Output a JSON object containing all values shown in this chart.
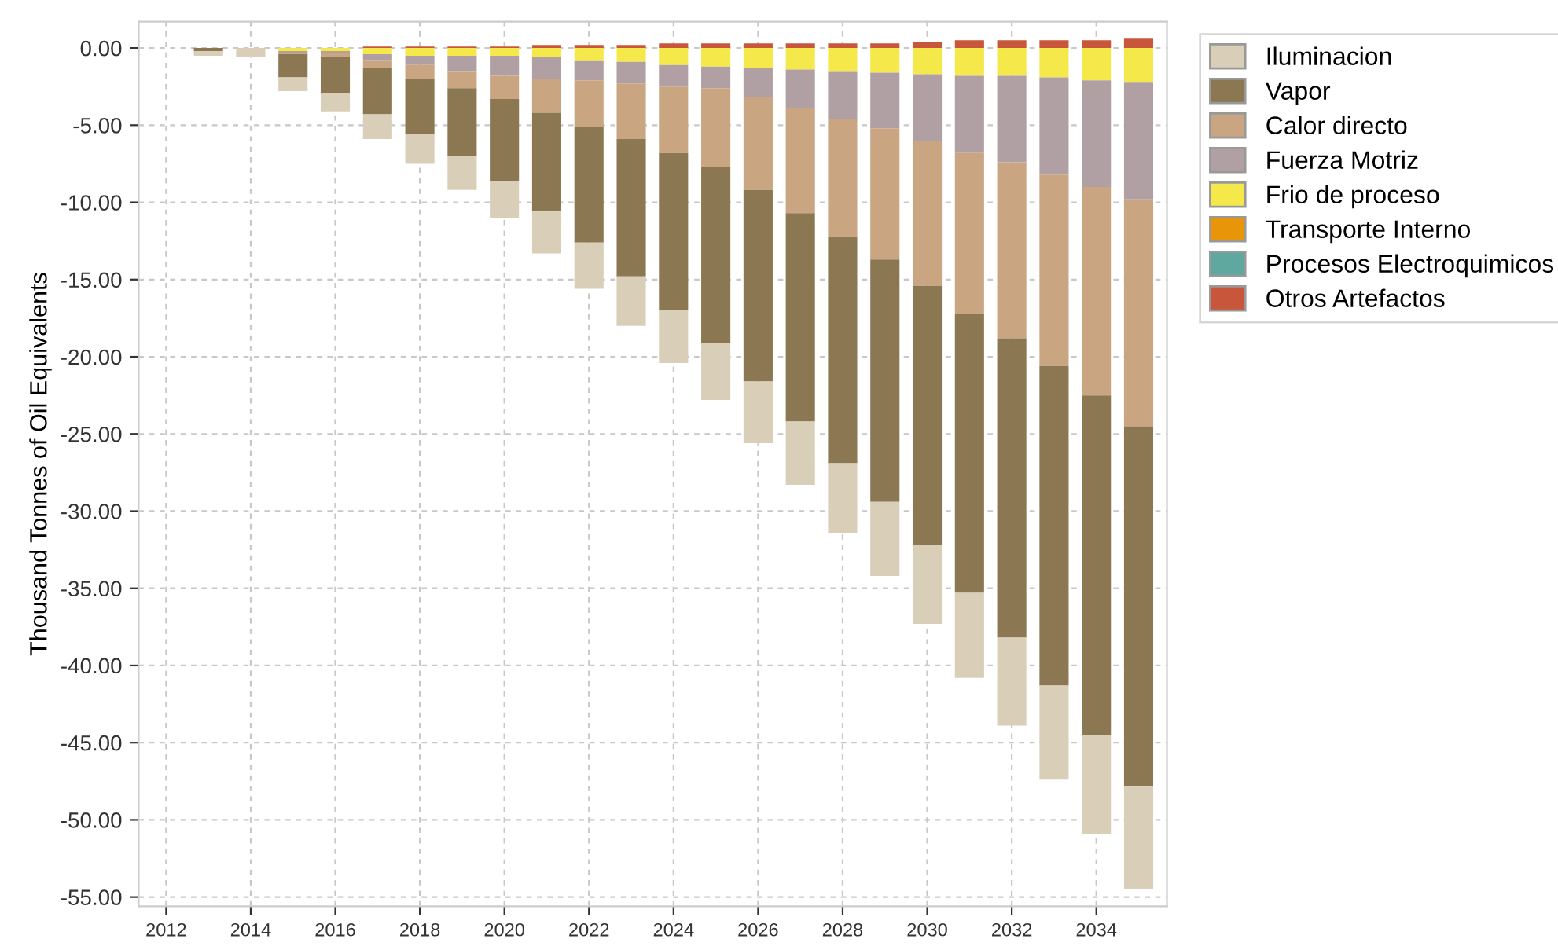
{
  "chart_data": {
    "type": "bar",
    "stacked": true,
    "ylabel": "Thousand Tonnes of Oil Equivalents",
    "x": [
      2013,
      2014,
      2015,
      2016,
      2017,
      2018,
      2019,
      2020,
      2021,
      2022,
      2023,
      2024,
      2025,
      2026,
      2027,
      2028,
      2029,
      2030,
      2031,
      2032,
      2033,
      2034,
      2035
    ],
    "series": [
      {
        "name": "Otros Artefactos",
        "color": "#c8563a",
        "values": [
          null,
          null,
          null,
          null,
          0.1,
          0.1,
          0.1,
          0.1,
          0.2,
          0.2,
          0.2,
          0.3,
          0.3,
          0.3,
          0.3,
          0.3,
          0.3,
          0.4,
          0.5,
          0.5,
          0.5,
          0.5,
          0.6
        ]
      },
      {
        "name": "Procesos Electroquimicos",
        "color": "#5fa8a0",
        "values": [
          null,
          null,
          null,
          null,
          null,
          null,
          null,
          null,
          null,
          null,
          null,
          null,
          null,
          null,
          null,
          null,
          null,
          null,
          null,
          null,
          null,
          null,
          null
        ]
      },
      {
        "name": "Transporte Interno",
        "color": "#e8950a",
        "values": [
          null,
          null,
          null,
          null,
          null,
          null,
          null,
          null,
          null,
          null,
          null,
          null,
          null,
          null,
          null,
          null,
          null,
          null,
          null,
          null,
          null,
          null,
          null
        ]
      },
      {
        "name": "Frio de proceso",
        "color": "#f5e84a",
        "values": [
          null,
          null,
          -0.2,
          -0.2,
          -0.4,
          -0.5,
          -0.5,
          -0.5,
          -0.6,
          -0.8,
          -0.9,
          -1.1,
          -1.2,
          -1.3,
          -1.4,
          -1.5,
          -1.6,
          -1.7,
          -1.8,
          -1.8,
          -1.9,
          -2.1,
          -2.2
        ]
      },
      {
        "name": "Fuerza Motriz",
        "color": "#b0a0a4",
        "values": [
          null,
          null,
          -0.1,
          -0.1,
          -0.4,
          -0.6,
          -1.0,
          -1.3,
          -1.4,
          -1.3,
          -1.4,
          -1.4,
          -1.4,
          -1.9,
          -2.5,
          -3.1,
          -3.6,
          -4.3,
          -5.0,
          -5.6,
          -6.3,
          -6.9,
          -7.6
        ]
      },
      {
        "name": "Calor directo",
        "color": "#c9a581",
        "values": [
          null,
          null,
          -0.1,
          -0.3,
          -0.5,
          -0.9,
          -1.1,
          -1.5,
          -2.2,
          -3.0,
          -3.6,
          -4.3,
          -5.1,
          -6.0,
          -6.8,
          -7.6,
          -8.5,
          -9.4,
          -10.4,
          -11.4,
          -12.4,
          -13.5,
          -14.7
        ]
      },
      {
        "name": "Vapor",
        "color": "#8b7852",
        "values": [
          -0.2,
          null,
          -1.5,
          -2.3,
          -3.0,
          -3.6,
          -4.4,
          -5.3,
          -6.4,
          -7.5,
          -8.9,
          -10.2,
          -11.4,
          -12.4,
          -13.5,
          -14.7,
          -15.7,
          -16.8,
          -18.1,
          -19.4,
          -20.7,
          -22.0,
          -23.3
        ]
      },
      {
        "name": "Iluminacion",
        "color": "#d9cfb8",
        "values": [
          -0.3,
          -0.6,
          -0.9,
          -1.2,
          -1.6,
          -1.9,
          -2.2,
          -2.4,
          -2.7,
          -3.0,
          -3.2,
          -3.4,
          -3.7,
          -4.0,
          -4.1,
          -4.5,
          -4.8,
          -5.1,
          -5.5,
          -5.7,
          -6.1,
          -6.4,
          -6.7
        ]
      }
    ],
    "xlim": [
      2011.35,
      2035.67
    ],
    "xticks": [
      2012,
      2014,
      2016,
      2018,
      2020,
      2022,
      2024,
      2026,
      2028,
      2030,
      2032,
      2034
    ],
    "ylim": [
      -55.6,
      1.7
    ],
    "yticks": [
      {
        "value": 0,
        "label": "0.00"
      },
      {
        "value": -5,
        "label": "-5.00"
      },
      {
        "value": -10,
        "label": "-10.00"
      },
      {
        "value": -15,
        "label": "-15.00"
      },
      {
        "value": -20,
        "label": "-20.00"
      },
      {
        "value": -25,
        "label": "-25.00"
      },
      {
        "value": -30,
        "label": "-30.00"
      },
      {
        "value": -35,
        "label": "-35.00"
      },
      {
        "value": -40,
        "label": "-40.00"
      },
      {
        "value": -45,
        "label": "-45.00"
      },
      {
        "value": -50,
        "label": "-50.00"
      },
      {
        "value": -55,
        "label": "-55.00"
      }
    ],
    "grid": true,
    "legend": "right"
  }
}
